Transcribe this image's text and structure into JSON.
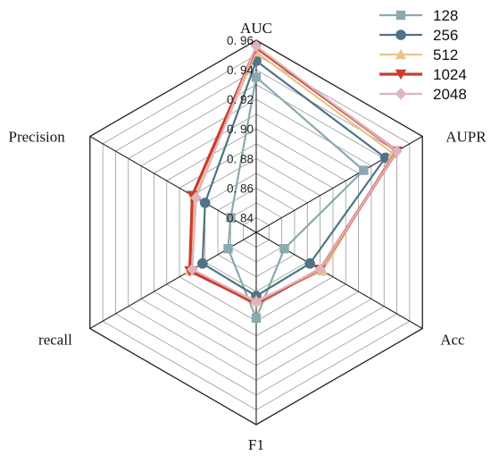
{
  "chart_data": {
    "type": "radar",
    "axes": [
      "AUC",
      "AUPR",
      "Acc",
      "F1",
      "recall",
      "Precision"
    ],
    "rlim": [
      0.83,
      0.96
    ],
    "ticks": [
      {
        "value": 0.84,
        "label": "0. 84"
      },
      {
        "value": 0.86,
        "label": "0. 86"
      },
      {
        "value": 0.88,
        "label": "0. 88"
      },
      {
        "value": 0.9,
        "label": "0. 90"
      },
      {
        "value": 0.92,
        "label": "0. 92"
      },
      {
        "value": 0.94,
        "label": "0. 94"
      },
      {
        "value": 0.96,
        "label": "0. 96"
      }
    ],
    "grid": true,
    "legend_position": "top-right",
    "series": [
      {
        "name": "128",
        "color": "#8aa9b0",
        "marker": "square",
        "width": 2.2,
        "values": [
          0.935,
          0.914,
          0.852,
          0.888,
          0.852,
          0.85
        ]
      },
      {
        "name": "256",
        "color": "#4f7387",
        "marker": "circle",
        "width": 2.2,
        "values": [
          0.946,
          0.931,
          0.872,
          0.873,
          0.872,
          0.87
        ]
      },
      {
        "name": "512",
        "color": "#e6c58a",
        "marker": "triangle",
        "width": 2.2,
        "values": [
          0.952,
          0.937,
          0.882,
          0.876,
          0.882,
          0.878
        ]
      },
      {
        "name": "1024",
        "color": "#cc3b2e",
        "marker": "triangle-down",
        "width": 3.2,
        "values": [
          0.955,
          0.94,
          0.88,
          0.878,
          0.882,
          0.88
        ]
      },
      {
        "name": "2048",
        "color": "#e0b3bd",
        "marker": "diamond",
        "width": 2.2,
        "values": [
          0.956,
          0.94,
          0.88,
          0.877,
          0.88,
          0.877
        ]
      }
    ]
  }
}
